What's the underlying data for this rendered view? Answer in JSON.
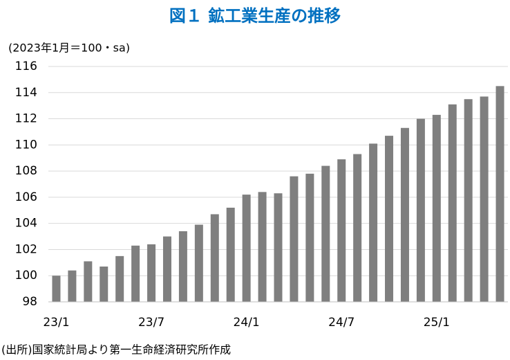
{
  "chart_data": {
    "type": "bar",
    "title": "図１ 鉱工業生産の推移",
    "y_label": "(2023年1月＝100・sa)",
    "source": "(出所)国家統計局より第一生命経済研究所作成",
    "categories": [
      "23/1",
      null,
      null,
      null,
      null,
      null,
      "23/7",
      null,
      null,
      null,
      null,
      null,
      "24/1",
      null,
      null,
      null,
      null,
      null,
      "24/7",
      null,
      null,
      null,
      null,
      null,
      "25/1",
      null,
      null,
      null,
      null
    ],
    "values": [
      100.0,
      100.4,
      101.1,
      100.7,
      101.5,
      102.3,
      102.4,
      103.0,
      103.4,
      103.9,
      104.7,
      105.2,
      106.2,
      106.4,
      106.3,
      107.6,
      107.8,
      108.4,
      108.9,
      109.3,
      110.1,
      110.7,
      111.3,
      112.0,
      112.3,
      113.1,
      113.5,
      113.7,
      114.5
    ],
    "color": "#7f7f7f",
    "ylim": [
      98,
      116
    ],
    "yticks": [
      98,
      100,
      102,
      104,
      106,
      108,
      110,
      112,
      114,
      116
    ],
    "grid": true
  }
}
